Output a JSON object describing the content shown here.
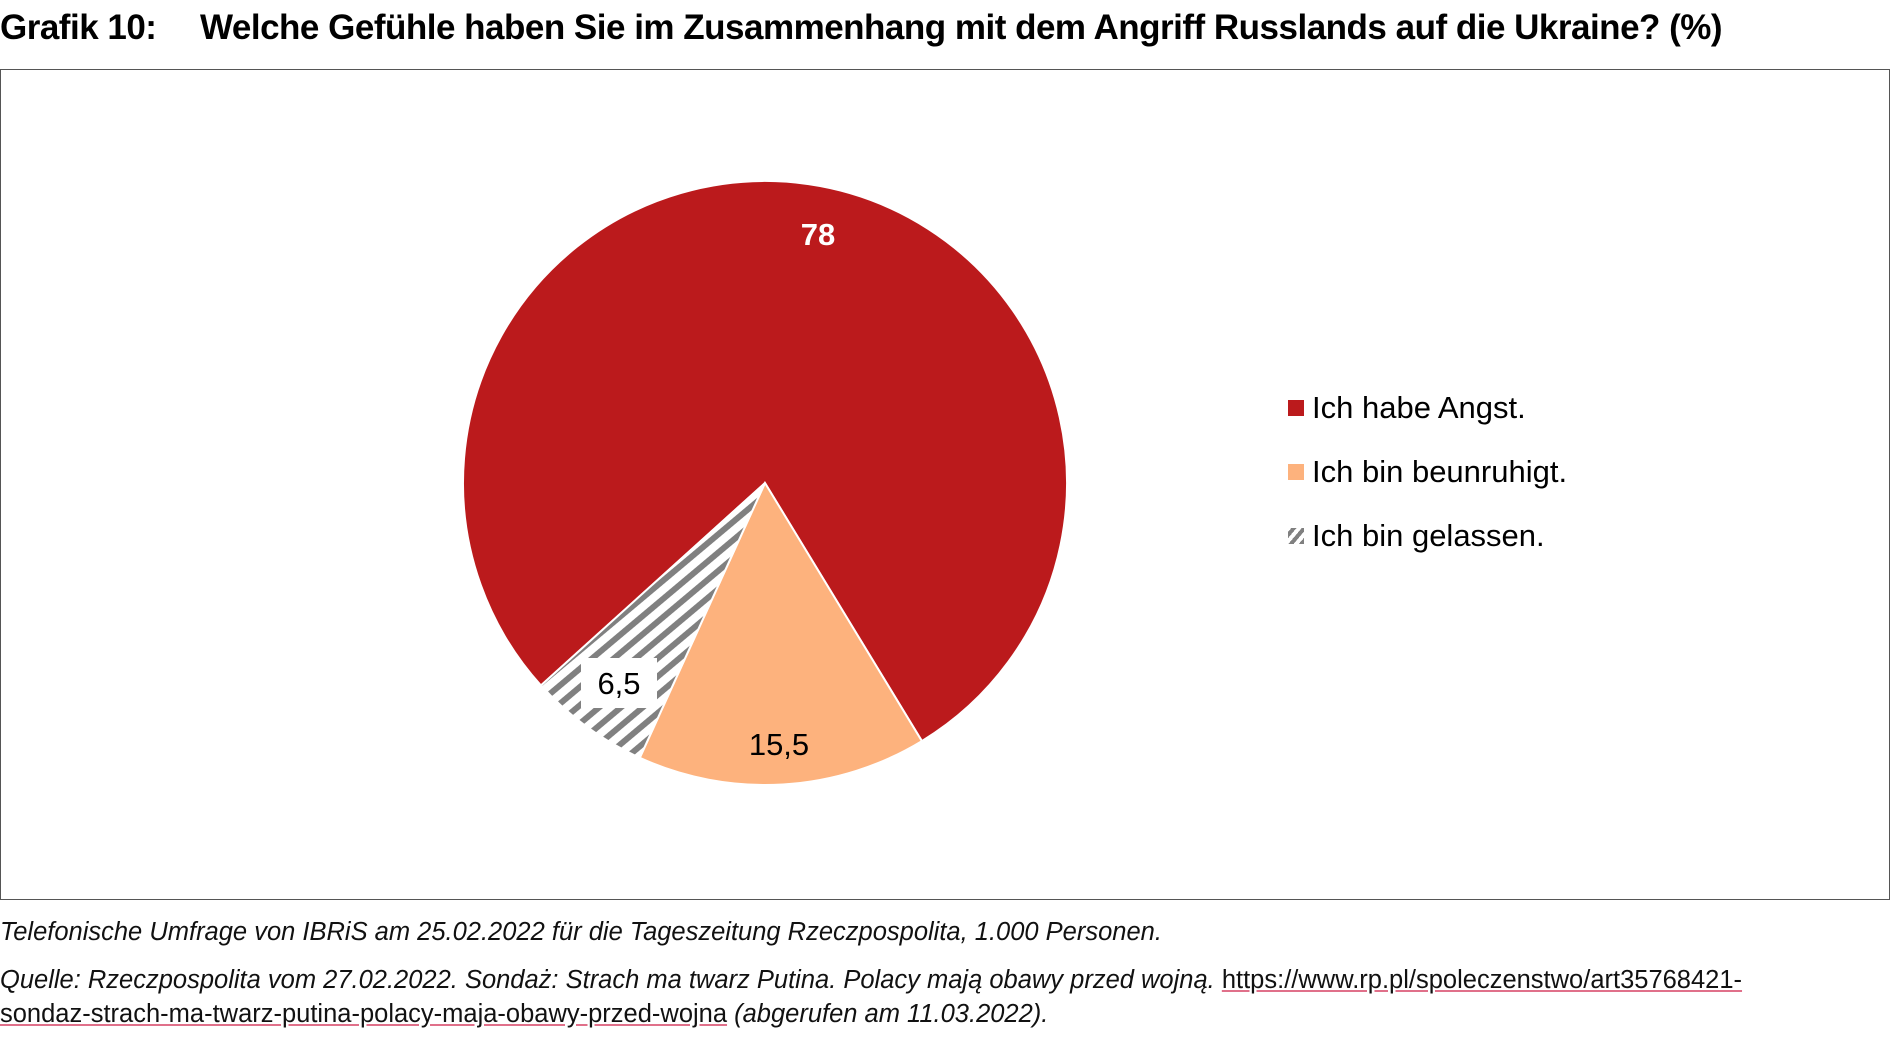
{
  "title": {
    "number": "Grafik 10:",
    "text": "Welche Gefühle haben Sie im Zusammenhang mit dem Angriff Russlands auf die Ukraine? (%)"
  },
  "chart_data": {
    "type": "pie",
    "title": "Welche Gefühle haben Sie im Zusammenhang mit dem Angriff Russlands auf die Ukraine? (%)",
    "categories": [
      "Ich habe Angst.",
      "Ich bin beunruhigt.",
      "Ich bin gelassen."
    ],
    "values": [
      78,
      15.5,
      6.5
    ],
    "data_labels": [
      "78",
      "15,5",
      "6,5"
    ],
    "colors": [
      "#bb1a1c",
      "#fdb27d",
      "#808080"
    ],
    "legend_position": "right"
  },
  "notes": {
    "line1": "Telefonische Umfrage von IBRiS am 25.02.2022 für die Tageszeitung Rzeczpospolita, 1.000 Personen.",
    "line2_text": "Quelle: Rzeczpospolita vom 27.02.2022. Sondaż: Strach ma twarz Putina. Polacy mają obawy przed wojną.",
    "line2_link": "https://www.rp.pl/spoleczenstwo/art35768421-",
    "line3_link": "sondaz-strach-ma-twarz-putina-polacy-maja-obawy-przed-wojna",
    "line3_text": "(abgerufen am 11.03.2022)."
  }
}
